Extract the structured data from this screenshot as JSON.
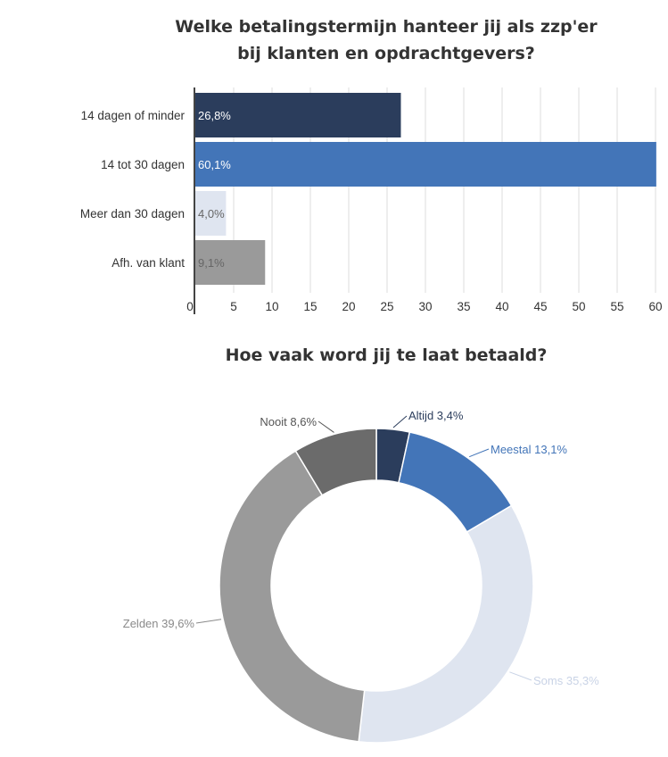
{
  "chart_data": [
    {
      "type": "bar",
      "orientation": "horizontal",
      "title_lines": [
        "Welke betalingstermijn hanteer jij als zzp'er",
        "bij klanten en opdrachtgevers?"
      ],
      "categories": [
        "14 dagen of minder",
        "14 tot 30 dagen",
        "Meer dan 30 dagen",
        "Afh. van klant"
      ],
      "values": [
        26.8,
        60.1,
        4.0,
        9.1
      ],
      "data_labels": [
        "26,8%",
        "60,1%",
        "4,0%",
        "9,1%"
      ],
      "colors": [
        "#2b3d5c",
        "#4375b8",
        "#dfe5f0",
        "#9a9a9a"
      ],
      "label_colors": [
        "#ffffff",
        "#ffffff",
        "#666666",
        "#666666"
      ],
      "xlim": [
        0,
        60
      ],
      "ticks": [
        "0",
        "5",
        "10",
        "15",
        "20",
        "25",
        "30",
        "35",
        "40",
        "45",
        "50",
        "55",
        "60"
      ],
      "grid": true,
      "xlabel": "",
      "ylabel": ""
    },
    {
      "type": "pie",
      "variant": "donut",
      "title": "Hoe vaak word jij te laat betaald?",
      "slices": [
        {
          "name": "Altijd",
          "value": 3.4,
          "label": "Altijd 3,4%",
          "color": "#2b3d5c",
          "label_color": "#2b3d5c"
        },
        {
          "name": "Meestal",
          "value": 13.1,
          "label": "Meestal 13,1%",
          "color": "#4375b8",
          "label_color": "#4375b8"
        },
        {
          "name": "Soms",
          "value": 35.3,
          "label": "Soms 35,3%",
          "color": "#dfe5f0",
          "label_color": "#c9d3e6"
        },
        {
          "name": "Zelden",
          "value": 39.6,
          "label": "Zelden 39,6%",
          "color": "#9a9a9a",
          "label_color": "#8a8a8a"
        },
        {
          "name": "Nooit",
          "value": 8.6,
          "label": "Nooit 8,6%",
          "color": "#6b6b6b",
          "label_color": "#555555"
        }
      ]
    }
  ]
}
